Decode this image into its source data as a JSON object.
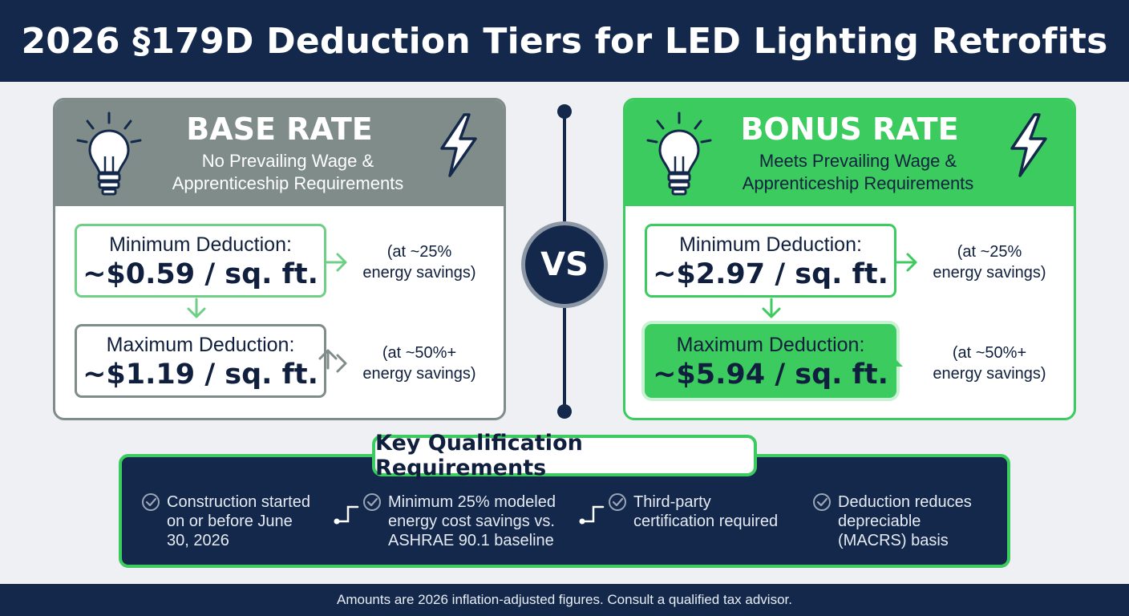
{
  "header": {
    "title": "2026 §179D Deduction Tiers for LED Lighting Retrofits"
  },
  "colors": {
    "navy": "#13284b",
    "gray": "#7f8c89",
    "green": "#3ccb5e"
  },
  "base": {
    "title": "BASE RATE",
    "subtitle_line1": "No Prevailing Wage &",
    "subtitle_line2": "Apprenticeship Requirements",
    "icons": [
      "lightbulb-icon",
      "lightning-bolt-icon"
    ],
    "min": {
      "label": "Minimum Deduction:",
      "value": "~$0.59 / sq. ft.",
      "note_line1": "(at ~25%",
      "note_line2": "energy savings)"
    },
    "max": {
      "label": "Maximum Deduction:",
      "value": "~$1.19 / sq. ft.",
      "note_line1": "(at ~50%+",
      "note_line2": "energy savings)"
    }
  },
  "vs": {
    "label": "VS"
  },
  "bonus": {
    "title": "BONUS RATE",
    "subtitle_line1": "Meets Prevailing Wage &",
    "subtitle_line2": "Apprenticeship Requirements",
    "icons": [
      "lightbulb-icon",
      "lightning-bolt-icon"
    ],
    "min": {
      "label": "Minimum Deduction:",
      "value": "~$2.97 / sq. ft.",
      "note_line1": "(at ~25%",
      "note_line2": "energy savings)"
    },
    "max": {
      "label": "Maximum Deduction:",
      "value": "~$5.94 / sq. ft.",
      "note_line1": "(at ~50%+",
      "note_line2": "energy savings)"
    }
  },
  "requirements": {
    "title": "Key Qualification Requirements",
    "items": [
      {
        "line1": "Construction started",
        "line2": "on or before June",
        "line3": "30, 2026"
      },
      {
        "line1": "Minimum 25% modeled",
        "line2": "energy cost savings vs.",
        "line3": "ASHRAE 90.1 baseline"
      },
      {
        "line1": "Third-party",
        "line2": "certification required",
        "line3": ""
      },
      {
        "line1": "Deduction reduces",
        "line2": "depreciable",
        "line3": "(MACRS) basis"
      }
    ]
  },
  "footer": {
    "text": "Amounts are 2026 inflation-adjusted figures. Consult a qualified tax advisor."
  }
}
